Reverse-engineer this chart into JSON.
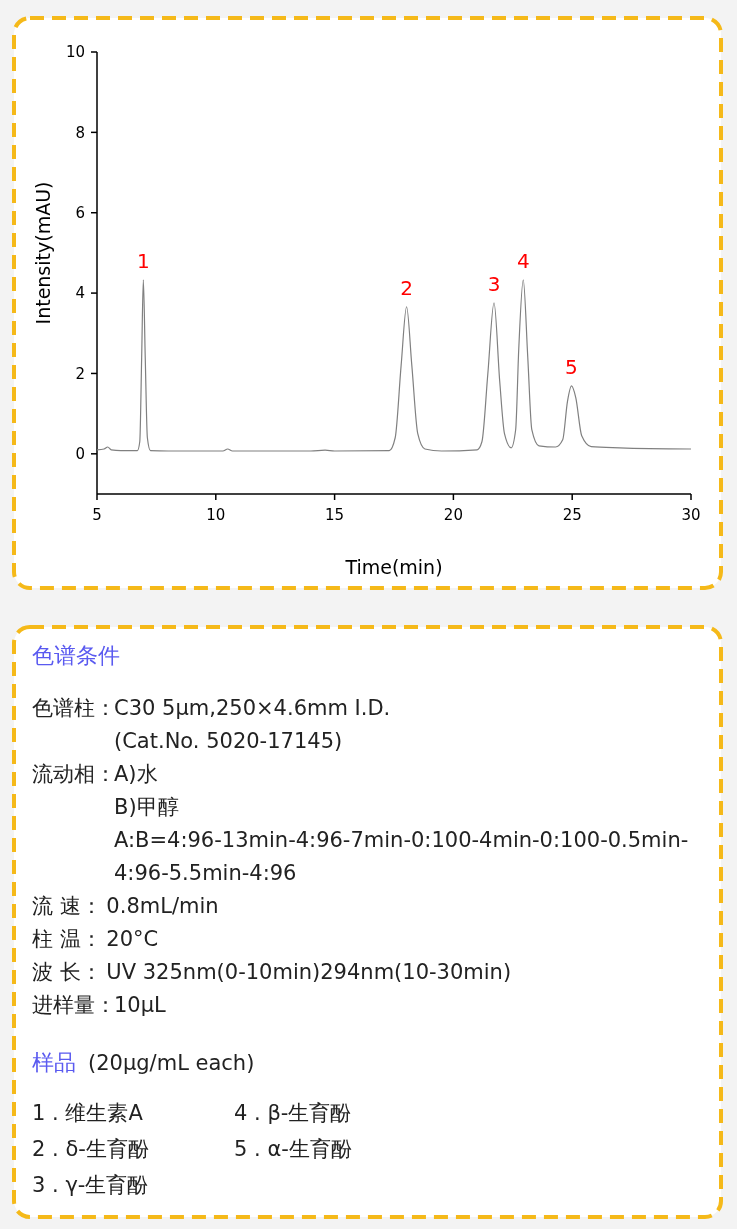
{
  "chart_data": [
    {
      "type": "line",
      "xlabel": "Time(min)",
      "ylabel": "Intensity(mAU)",
      "xlim": [
        5,
        30
      ],
      "xticks": [
        5,
        10,
        15,
        20,
        25,
        30
      ],
      "ylim": [
        -1,
        10
      ],
      "yticks": [
        0,
        2,
        4,
        6,
        8,
        10
      ],
      "grid": false,
      "series": [
        {
          "color": "#808080",
          "x": [
            5.0,
            5.3,
            5.45,
            5.6,
            6.0,
            6.7,
            6.8,
            6.88,
            6.95,
            7.03,
            7.12,
            7.25,
            8,
            10.3,
            10.5,
            10.7,
            14,
            14.6,
            15,
            17.3,
            17.55,
            17.8,
            18.03,
            18.25,
            18.5,
            18.8,
            19.5,
            21.0,
            21.2,
            21.45,
            21.71,
            21.95,
            22.15,
            22.43,
            22.62,
            22.75,
            22.94,
            23.13,
            23.3,
            23.6,
            24.3,
            24.6,
            24.8,
            24.97,
            25.15,
            25.4,
            25.8,
            27,
            30
          ],
          "values": [
            0.1,
            0.12,
            0.17,
            0.1,
            0.08,
            0.08,
            0.3,
            2.4,
            4.33,
            2.4,
            0.4,
            0.08,
            0.07,
            0.07,
            0.12,
            0.07,
            0.07,
            0.09,
            0.07,
            0.08,
            0.4,
            2.2,
            3.66,
            2.2,
            0.5,
            0.12,
            0.07,
            0.1,
            0.3,
            2.0,
            3.76,
            1.8,
            0.5,
            0.15,
            0.6,
            2.6,
            4.33,
            2.4,
            0.6,
            0.2,
            0.17,
            0.35,
            1.3,
            1.69,
            1.4,
            0.45,
            0.18,
            0.15,
            0.12
          ]
        }
      ],
      "annotations": [
        {
          "text": "1",
          "x": 6.95,
          "y": 4.33
        },
        {
          "text": "2",
          "x": 18.03,
          "y": 3.66
        },
        {
          "text": "3",
          "x": 21.71,
          "y": 3.76
        },
        {
          "text": "4",
          "x": 22.94,
          "y": 4.33
        },
        {
          "text": "5",
          "x": 24.97,
          "y": 1.69
        }
      ]
    },
    {
      "type": "other",
      "title": "色谱条件",
      "annotations": [
        "色谱柱：C30 5µm,250×4.6mm I.D.",
        "(Cat.No. 5020-17145)",
        "流动相：A)水",
        "B)甲醇",
        "A:B=4:96-13min-4:96-7min-0:100-4min-0:100-0.5min-4:96-5.5min-4:96",
        "流  速：0.8mL/min",
        "柱  温：20°C",
        "波  长：UV 325nm(0-10min)294nm(10-30min)",
        "进样量：10µL"
      ]
    },
    {
      "type": "other",
      "title": "样品",
      "subtitle": "(20µg/mL each)",
      "annotations": [
        "1 . 维生素A",
        "2 . δ-生育酚",
        "3 . γ-生育酚",
        "4 . β-生育酚",
        "5 . α-生育酚"
      ]
    }
  ]
}
